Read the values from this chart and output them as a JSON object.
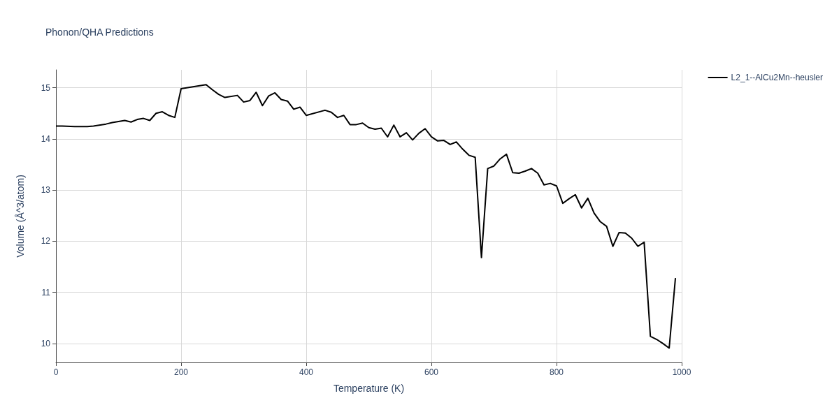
{
  "chart_data": {
    "type": "line",
    "title": "Phonon/QHA Predictions",
    "xlabel": "Temperature (K)",
    "ylabel": "Volume (Å^3/atom)",
    "xlim": [
      0,
      1000
    ],
    "xticks": [
      0,
      200,
      400,
      600,
      800,
      1000
    ],
    "ylim": [
      9.63,
      15.35
    ],
    "yticks": [
      10,
      11,
      12,
      13,
      14,
      15
    ],
    "grid": true,
    "legend": "top right",
    "marker": "none",
    "line_style": "solid",
    "series": [
      {
        "name": "L2_1--AlCu2Mn--heusler",
        "color": "#000000",
        "x": [
          0,
          10,
          30,
          50,
          60,
          80,
          90,
          110,
          120,
          130,
          140,
          150,
          160,
          170,
          180,
          190,
          200,
          240,
          250,
          260,
          270,
          290,
          300,
          310,
          320,
          330,
          340,
          350,
          360,
          370,
          380,
          390,
          400,
          430,
          440,
          450,
          460,
          470,
          480,
          490,
          500,
          510,
          520,
          530,
          540,
          550,
          560,
          570,
          580,
          590,
          600,
          610,
          620,
          630,
          640,
          650,
          660,
          670,
          680,
          690,
          700,
          710,
          720,
          730,
          740,
          750,
          760,
          770,
          780,
          790,
          800,
          810,
          820,
          830,
          840,
          850,
          860,
          870,
          880,
          890,
          900,
          910,
          920,
          930,
          940,
          950,
          960,
          970,
          980,
          990
        ],
        "values": [
          14.25,
          14.25,
          14.24,
          14.24,
          14.25,
          14.29,
          14.32,
          14.36,
          14.33,
          14.38,
          14.4,
          14.36,
          14.5,
          14.53,
          14.46,
          14.42,
          14.98,
          15.06,
          14.96,
          14.87,
          14.81,
          14.85,
          14.72,
          14.75,
          14.91,
          14.65,
          14.84,
          14.9,
          14.77,
          14.74,
          14.58,
          14.62,
          14.46,
          14.56,
          14.52,
          14.42,
          14.46,
          14.28,
          14.28,
          14.31,
          14.22,
          14.19,
          14.21,
          14.04,
          14.27,
          14.04,
          14.12,
          13.98,
          14.11,
          14.2,
          14.04,
          13.96,
          13.97,
          13.89,
          13.94,
          13.8,
          13.68,
          13.64,
          11.68,
          13.42,
          13.47,
          13.61,
          13.7,
          13.34,
          13.33,
          13.37,
          13.42,
          13.33,
          13.1,
          13.13,
          13.08,
          12.74,
          12.83,
          12.91,
          12.65,
          12.84,
          12.55,
          12.38,
          12.29,
          11.9,
          12.17,
          12.16,
          12.06,
          11.9,
          11.98,
          10.14,
          10.08,
          10,
          9.91,
          11.28
        ]
      }
    ]
  }
}
